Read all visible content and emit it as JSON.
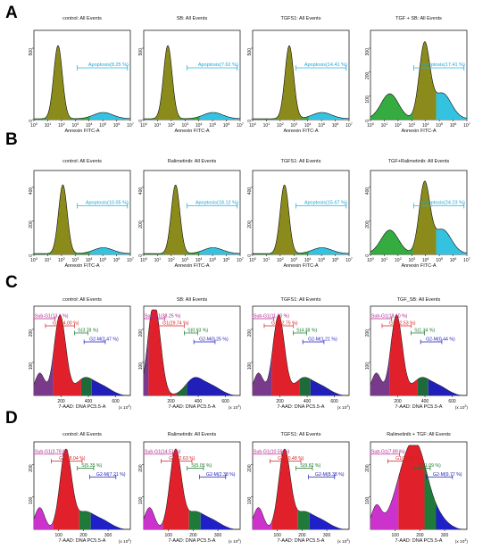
{
  "figure_labels": [
    "A",
    "B",
    "C",
    "D"
  ],
  "chart_data": [
    {
      "type": "area",
      "row": "A",
      "title": "control: All Events",
      "xlabel": "Annexin FITC-A",
      "x_scale": "log",
      "xticks": [
        "10^0",
        "10^1",
        "10^2",
        "10^3",
        "10^4",
        "10^5",
        "10^6",
        "10^7"
      ],
      "yticks": [
        0,
        500
      ],
      "gate": {
        "name": "Apoptosis",
        "value": "8.25 %",
        "label": "Apoptosis(8.25 %)"
      }
    },
    {
      "type": "area",
      "row": "A",
      "title": "SB: All Events",
      "xlabel": "Annexin FITC-A",
      "x_scale": "log",
      "xticks": [
        "10^0",
        "10^1",
        "10^2",
        "10^3",
        "10^4",
        "10^5",
        "10^6",
        "10^7"
      ],
      "yticks": [
        0,
        500
      ],
      "gate": {
        "name": "Apoptosis",
        "value": "7.62 %",
        "label": "Apoptosis(7.62 %)"
      }
    },
    {
      "type": "area",
      "row": "A",
      "title": "TGFS1: All Events",
      "xlabel": "Annexin FITC-A",
      "x_scale": "log",
      "xticks": [
        "10^0",
        "10^1",
        "10^2",
        "10^3",
        "10^4",
        "10^5",
        "10^6",
        "10^7"
      ],
      "yticks": [
        0,
        500
      ],
      "gate": {
        "name": "Apoptosis",
        "value": "14.41 %",
        "label": "Apoptosis(14.41 %)"
      }
    },
    {
      "type": "area",
      "row": "A",
      "title": "TGF + SB: All Events",
      "xlabel": "Annexin FITC-A",
      "x_scale": "log",
      "xticks": [
        "10^0",
        "10^1",
        "10^2",
        "10^3",
        "10^4",
        "10^5",
        "10^6",
        "10^7"
      ],
      "yticks": [
        0,
        100,
        200,
        300
      ],
      "gate": {
        "name": "Apoptosis",
        "value": "17.41 %",
        "label": "Apoptosis(17.41 %)"
      }
    },
    {
      "type": "area",
      "row": "B",
      "title": "control: All Events",
      "xlabel": "Annexin FITC-A",
      "x_scale": "log",
      "xticks": [
        "10^0",
        "10^1",
        "10^2",
        "10^3",
        "10^4",
        "10^5",
        "10^6",
        "10^7"
      ],
      "yticks": [
        0,
        200,
        400
      ],
      "gate": {
        "name": "Apoptosis",
        "value": "10.05 %",
        "label": "Apoptosis(10.05 %)"
      }
    },
    {
      "type": "area",
      "row": "B",
      "title": "Ralimetinib: All Events",
      "xlabel": "Annexin FITC-A",
      "x_scale": "log",
      "xticks": [
        "10^0",
        "10^1",
        "10^2",
        "10^3",
        "10^4",
        "10^5",
        "10^6",
        "10^7"
      ],
      "yticks": [
        0,
        200,
        400
      ],
      "gate": {
        "name": "Apoptosis",
        "value": "18.12 %",
        "label": "Apoptosis(18.12 %)"
      }
    },
    {
      "type": "area",
      "row": "B",
      "title": "TGFS1: All Events",
      "xlabel": "Annexin FITC-A",
      "x_scale": "log",
      "xticks": [
        "10^0",
        "10^1",
        "10^2",
        "10^3",
        "10^4",
        "10^5",
        "10^6",
        "10^7"
      ],
      "yticks": [
        0,
        200,
        400
      ],
      "gate": {
        "name": "Apoptosis",
        "value": "15.67 %",
        "label": "Apoptosis(15.67 %)"
      }
    },
    {
      "type": "area",
      "row": "B",
      "title": "TGF+Ralimetinib: All Events",
      "xlabel": "Annexin FITC-A",
      "x_scale": "log",
      "xticks": [
        "10^0",
        "10^1",
        "10^2",
        "10^3",
        "10^4",
        "10^5",
        "10^6",
        "10^7"
      ],
      "yticks": [
        0,
        200,
        400
      ],
      "gate": {
        "name": "Apoptosis",
        "value": "24.23 %",
        "label": "Apoptosis(24.23 %)"
      }
    },
    {
      "type": "area",
      "row": "C",
      "title": "control: All Events",
      "xlabel": "7-AAD: DNA PC5.5-A",
      "x_unit": "(x 10^3)",
      "xticks": [
        200,
        400,
        600
      ],
      "yticks": [
        100,
        200
      ],
      "gates": [
        {
          "label": "Sub-G1(13.1 %)"
        },
        {
          "label": "G1(34.00 %)"
        },
        {
          "label": "S(3.78 %)"
        },
        {
          "label": "G2-M(2.47 %)"
        }
      ]
    },
    {
      "type": "area",
      "row": "C",
      "title": "SB: All Events",
      "xlabel": "7-AAD: DNA PC5.5-A",
      "x_unit": "(x 10^3)",
      "xticks": [
        200,
        400,
        600
      ],
      "yticks": [
        100,
        200
      ],
      "gates": [
        {
          "label": "Sub-G1(38.25 %)"
        },
        {
          "label": "G1(29.74 %)"
        },
        {
          "label": "S(0.93 %)"
        },
        {
          "label": "G2-M(0.25 %)"
        }
      ]
    },
    {
      "type": "area",
      "row": "C",
      "title": "TGFS1: All Events",
      "xlabel": "7-AAD: DNA PC5.5-A",
      "x_unit": "(x 10^3)",
      "xticks": [
        200,
        400,
        600
      ],
      "yticks": [
        100,
        200
      ],
      "gates": [
        {
          "label": "Sub-G1(11.20 %)"
        },
        {
          "label": "G1(32.75 %)"
        },
        {
          "label": "S(4.38 %)"
        },
        {
          "label": "G2-M(1.21 %)"
        }
      ]
    },
    {
      "type": "area",
      "row": "C",
      "title": "TGF_SB: All Events",
      "xlabel": "7-AAD: DNA PC5.5-A",
      "x_unit": "(x 10^3)",
      "xticks": [
        200,
        400,
        600
      ],
      "yticks": [
        100,
        200
      ],
      "gates": [
        {
          "label": "Sub-G1(18.10 %)"
        },
        {
          "label": "G1(22.53 %)"
        },
        {
          "label": "S(1.34 %)"
        },
        {
          "label": "G2-M(0.44 %)"
        }
      ]
    },
    {
      "type": "area",
      "row": "D",
      "title": "control: All Events",
      "xlabel": "7-AAD: DNA PC5.5-A",
      "x_unit": "(x 10^3)",
      "xticks": [
        100,
        200,
        300
      ],
      "yticks": [
        100,
        200
      ],
      "gates": [
        {
          "label": "Sub-G1(3.78 %)"
        },
        {
          "label": "G1(58.04 %)"
        },
        {
          "label": "S(5.35 %)"
        },
        {
          "label": "G2-M(7.21 %)"
        }
      ]
    },
    {
      "type": "area",
      "row": "D",
      "title": "Ralimetinib: All Events",
      "xlabel": "7-AAD: DNA PC5.5-A",
      "x_unit": "(x 10^3)",
      "xticks": [
        100,
        200,
        300
      ],
      "yticks": [
        100,
        200
      ],
      "gates": [
        {
          "label": "Sub-G1(14.51 %)"
        },
        {
          "label": "G1(52.63 %)"
        },
        {
          "label": "S(5.05 %)"
        },
        {
          "label": "G2-M(2.38 %)"
        }
      ]
    },
    {
      "type": "area",
      "row": "D",
      "title": "TGFS1: All Events",
      "xlabel": "7-AAD: DNA PC5.5-A",
      "x_unit": "(x 10^3)",
      "xticks": [
        100,
        200,
        300
      ],
      "yticks": [
        100,
        200
      ],
      "gates": [
        {
          "label": "Sub-G1(10.59 %)"
        },
        {
          "label": "G1(30.48 %)"
        },
        {
          "label": "S(9.82 %)"
        },
        {
          "label": "G2-M(8.38 %)"
        }
      ]
    },
    {
      "type": "area",
      "row": "D",
      "title": "Ralimetinib + TGF: All Events",
      "xlabel": "7-AAD: DNA PC5.5-A",
      "x_unit": "(x 10^3)",
      "xticks": [
        100,
        200,
        300
      ],
      "yticks": [
        100,
        200
      ],
      "gates": [
        {
          "label": "Sub-G1(7.89 %)"
        },
        {
          "label": "G1(24.63 %)"
        },
        {
          "label": "S(11.09 %)"
        },
        {
          "label": "G2-M(9.77 %)"
        }
      ]
    }
  ]
}
